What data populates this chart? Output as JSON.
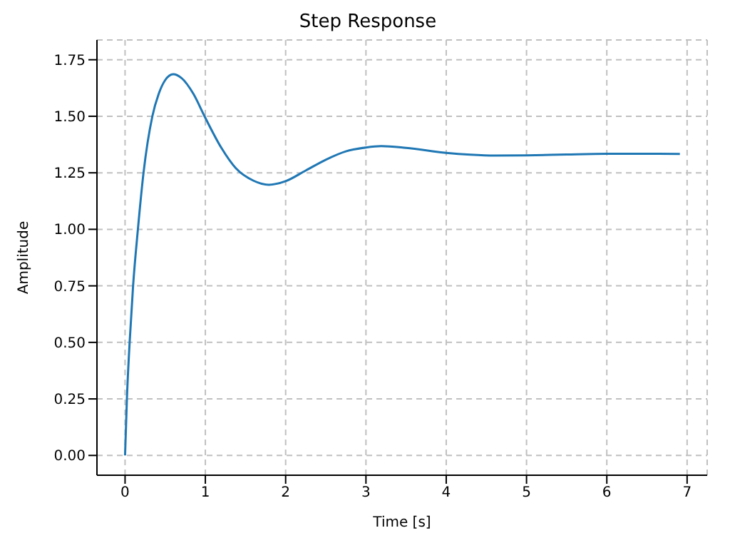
{
  "chart_data": {
    "type": "line",
    "title": "Step Response",
    "xlabel": "Time [s]",
    "ylabel": "Amplitude",
    "grid": true,
    "line_style": "solid",
    "marker": "none",
    "xlim": [
      -0.35,
      7.25
    ],
    "ylim": [
      -0.0875,
      1.8375
    ],
    "xticks": [
      0,
      1,
      2,
      3,
      4,
      5,
      6,
      7
    ],
    "yticks": [
      {
        "value": 0,
        "label": "0.00"
      },
      {
        "value": 0.25,
        "label": "0.25"
      },
      {
        "value": 0.5,
        "label": "0.50"
      },
      {
        "value": 0.75,
        "label": "0.75"
      },
      {
        "value": 1,
        "label": "1.00"
      },
      {
        "value": 1.25,
        "label": "1.25"
      },
      {
        "value": 1.5,
        "label": "1.50"
      },
      {
        "value": 1.75,
        "label": "1.75"
      }
    ],
    "series": [
      {
        "color": "#1f77b4",
        "x": [
          0,
          0.023,
          0.057,
          0.1,
          0.16,
          0.23,
          0.34,
          0.42,
          0.5,
          0.6,
          0.7,
          0.85,
          0.99,
          1.2,
          1.38,
          1.6,
          1.79,
          2,
          2.25,
          2.5,
          2.75,
          3,
          3.19,
          3.5,
          4,
          4.3,
          4.6,
          5,
          5.5,
          6,
          6.5,
          6.91
        ],
        "values": [
          0,
          0.25,
          0.5,
          0.75,
          1,
          1.25,
          1.5,
          1.6,
          1.66,
          1.686,
          1.67,
          1.6,
          1.5,
          1.36,
          1.27,
          1.215,
          1.197,
          1.213,
          1.26,
          1.308,
          1.345,
          1.362,
          1.368,
          1.36,
          1.338,
          1.33,
          1.326,
          1.327,
          1.331,
          1.334,
          1.334,
          1.333
        ]
      }
    ]
  }
}
